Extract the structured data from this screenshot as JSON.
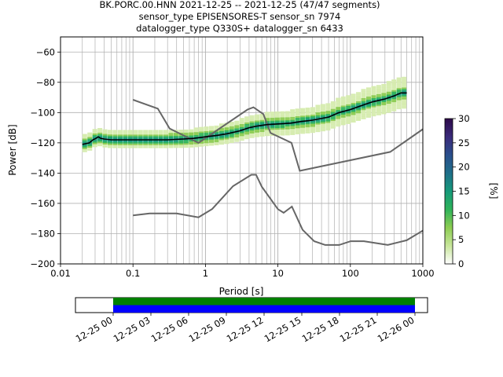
{
  "title_lines": [
    "BK.PORC.00.HNN   2021-12-25 -- 2021-12-25  (47/47 segments)",
    "sensor_type EPISENSORES-T sensor_sn 7974",
    "datalogger_type Q330S+ datalogger_sn 6433"
  ],
  "chart_data": [
    {
      "type": "heatmap",
      "xlabel": "Period [s]",
      "ylabel": "Power [dB]",
      "x_scale": "log",
      "xlim": [
        0.01,
        1000
      ],
      "ylim": [
        -200,
        -50
      ],
      "x_ticks": [
        0.01,
        0.1,
        1,
        10,
        100,
        1000
      ],
      "x_tick_labels": [
        "0.01",
        "0.1",
        "1",
        "10",
        "100",
        "1000"
      ],
      "y_ticks": [
        -200,
        -180,
        -160,
        -140,
        -120,
        -100,
        -80,
        -60
      ],
      "y_tick_labels": [
        "−200",
        "−180",
        "−160",
        "−140",
        "−120",
        "−100",
        "−80",
        "−60"
      ],
      "grid": true,
      "colorbar": {
        "label": "[%]",
        "range": [
          0,
          30
        ],
        "ticks": [
          0,
          5,
          10,
          15,
          20,
          25,
          30
        ],
        "tick_labels": [
          "0",
          "5",
          "10",
          "15",
          "20",
          "25",
          "30"
        ],
        "colormap": [
          "#ffffff",
          "#c8e69a",
          "#8ccc52",
          "#2fb35a",
          "#169a7a",
          "#1f6f8a",
          "#2a4f8c",
          "#3a2a7a",
          "#2d0a4a"
        ]
      },
      "mode_curve": [
        [
          0.02,
          -121
        ],
        [
          0.025,
          -120
        ],
        [
          0.028,
          -118
        ],
        [
          0.031,
          -117
        ],
        [
          0.033,
          -116
        ],
        [
          0.036,
          -117
        ],
        [
          0.04,
          -117.5
        ],
        [
          0.05,
          -118
        ],
        [
          0.07,
          -118
        ],
        [
          0.1,
          -118
        ],
        [
          0.2,
          -118
        ],
        [
          0.3,
          -118
        ],
        [
          0.5,
          -117.5
        ],
        [
          0.7,
          -117
        ],
        [
          1,
          -116
        ],
        [
          1.5,
          -115
        ],
        [
          2,
          -114
        ],
        [
          3,
          -112
        ],
        [
          4,
          -110
        ],
        [
          5,
          -109
        ],
        [
          7,
          -108
        ],
        [
          10,
          -107.5
        ],
        [
          15,
          -107
        ],
        [
          20,
          -106
        ],
        [
          30,
          -105
        ],
        [
          50,
          -103
        ],
        [
          70,
          -100
        ],
        [
          100,
          -98
        ],
        [
          150,
          -95
        ],
        [
          200,
          -93
        ],
        [
          300,
          -91
        ],
        [
          400,
          -89
        ],
        [
          500,
          -87
        ],
        [
          600,
          -87
        ]
      ],
      "density_band": {
        "lower_offset": -5,
        "upper_offset": 6
      },
      "noise_models": {
        "nhnm": [
          [
            0.1,
            -91.5
          ],
          [
            0.22,
            -97.4
          ],
          [
            0.32,
            -110.5
          ],
          [
            0.8,
            -120
          ],
          [
            3.8,
            -98
          ],
          [
            4.6,
            -96.5
          ],
          [
            6.3,
            -101
          ],
          [
            7.9,
            -113.5
          ],
          [
            15.4,
            -120
          ],
          [
            20,
            -138.5
          ],
          [
            354.8,
            -126
          ],
          [
            1000,
            -111
          ]
        ],
        "nlnm": [
          [
            0.1,
            -168
          ],
          [
            0.17,
            -166.7
          ],
          [
            0.4,
            -166.7
          ],
          [
            0.8,
            -169.2
          ],
          [
            1.24,
            -163.7
          ],
          [
            2.4,
            -148.6
          ],
          [
            4.3,
            -141.1
          ],
          [
            5,
            -141.1
          ],
          [
            6,
            -149
          ],
          [
            10,
            -163.8
          ],
          [
            12,
            -166.2
          ],
          [
            15.6,
            -162.1
          ],
          [
            21.9,
            -177.5
          ],
          [
            31.6,
            -185
          ],
          [
            45,
            -187.5
          ],
          [
            70,
            -187.5
          ],
          [
            101,
            -185
          ],
          [
            154,
            -185
          ],
          [
            328,
            -187.5
          ],
          [
            600,
            -184.4
          ],
          [
            1000,
            -178
          ]
        ]
      }
    },
    {
      "type": "bar",
      "x_axis": "time",
      "xlim": [
        "12-24 21:00",
        "12-26 01:00"
      ],
      "x_ticks": [
        "12-25 00",
        "12-25 03",
        "12-25 06",
        "12-25 09",
        "12-25 12",
        "12-25 15",
        "12-25 18",
        "12-25 21",
        "12-26 00"
      ],
      "series": [
        {
          "color": "#008000",
          "start": "12-25 00:00",
          "end": "12-26 00:00"
        },
        {
          "color": "#0000ff",
          "start": "12-25 00:00",
          "end": "12-26 00:00"
        }
      ]
    }
  ]
}
